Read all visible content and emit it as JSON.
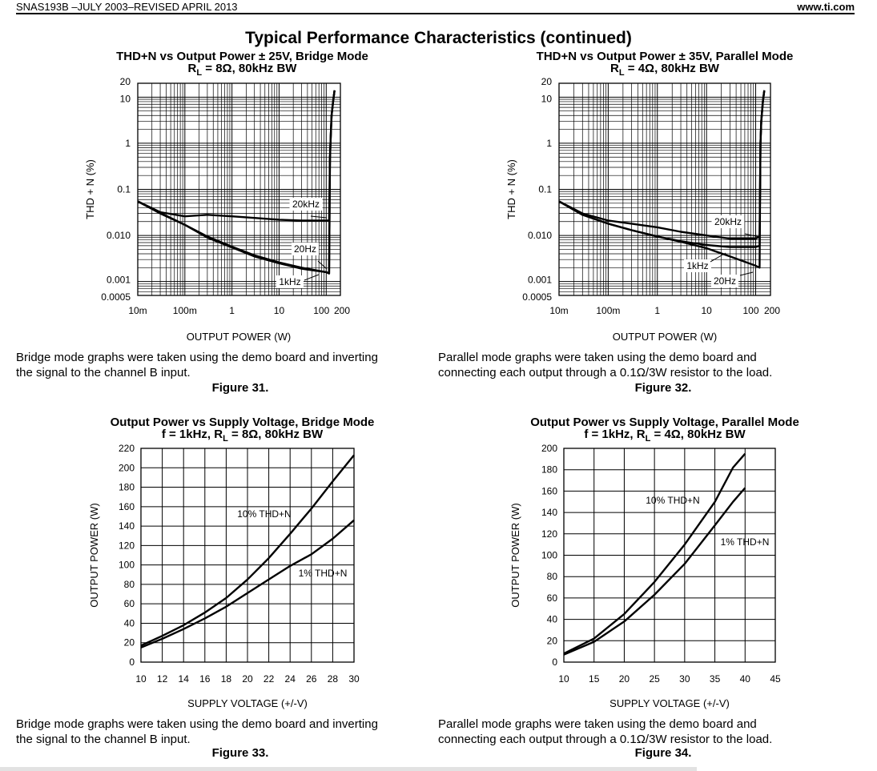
{
  "header": {
    "doc_id": "SNAS193B –JULY 2003–REVISED APRIL 2013",
    "site": "www.ti.com"
  },
  "page_title": "Typical Performance Characteristics (continued)",
  "figures": [
    {
      "title_line1": "THD+N vs Output Power ± 25V, Bridge Mode",
      "title_line2": "Rₗ = 8Ω, 80kHz BW",
      "r_sub": "L",
      "title_line2_pre": "R",
      "title_line2_post": " = 8Ω, 80kHz BW",
      "caption_line1": "Bridge mode graphs were taken using the demo board and inverting",
      "caption_line2": "the signal to the channel B input.",
      "figure_label": "Figure 31."
    },
    {
      "title_line1": "THD+N vs Output Power ± 35V, Parallel Mode",
      "r_sub": "L",
      "title_line2_pre": "R",
      "title_line2_post": " = 4Ω, 80kHz BW",
      "caption_line1": "Parallel mode graphs were taken using the demo board and",
      "caption_line2": "connecting each output through a 0.1Ω/3W resistor to the load.",
      "figure_label": "Figure 32."
    },
    {
      "title_line1": "Output Power vs Supply Voltage, Bridge Mode",
      "r_sub": "L",
      "title_line2_pre": "f = 1kHz, R",
      "title_line2_post": " = 8Ω, 80kHz BW",
      "caption_line1": "Bridge mode graphs were taken using the demo board and inverting",
      "caption_line2": "the signal to the channel B input.",
      "figure_label": "Figure 33."
    },
    {
      "title_line1": "Output Power vs Supply Voltage, Parallel Mode",
      "r_sub": "L",
      "title_line2_pre": "f = 1kHz, R",
      "title_line2_post": " = 4Ω, 80kHz BW",
      "caption_line1": "Parallel mode graphs were taken using the demo board and",
      "caption_line2": "connecting each output through a 0.1Ω/3W resistor to the load.",
      "figure_label": "Figure 34."
    }
  ],
  "chart_data": [
    {
      "type": "line",
      "xscale": "log",
      "yscale": "log",
      "xlim": [
        0.01,
        200
      ],
      "ylim": [
        0.0005,
        20
      ],
      "xlabel": "OUTPUT POWER (W)",
      "ylabel": "THD + N (%)",
      "xticks": [
        "10m",
        "100m",
        "1",
        "10",
        "100",
        "200"
      ],
      "yticks": [
        "20",
        "10",
        "1",
        "0.1",
        "0.010",
        "0.001",
        "0.0005"
      ],
      "grid": true,
      "series": [
        {
          "name": "20kHz",
          "x": [
            0.01,
            0.03,
            0.1,
            0.3,
            1,
            3,
            10,
            30,
            100,
            115,
            120,
            125,
            130,
            140,
            150
          ],
          "y": [
            0.055,
            0.032,
            0.026,
            0.028,
            0.026,
            0.024,
            0.022,
            0.021,
            0.021,
            0.021,
            0.5,
            1.5,
            4,
            8,
            14
          ]
        },
        {
          "name": "20Hz",
          "x": [
            0.01,
            0.03,
            0.1,
            0.3,
            1,
            3,
            10,
            30,
            100,
            115,
            120,
            125,
            130,
            140,
            150
          ],
          "y": [
            0.055,
            0.03,
            0.017,
            0.009,
            0.0055,
            0.0035,
            0.0025,
            0.0019,
            0.0016,
            0.0015,
            0.5,
            1.5,
            4,
            8,
            14
          ]
        },
        {
          "name": "1kHz",
          "x": [
            0.01,
            0.03,
            0.1,
            0.3,
            1,
            3,
            10,
            30,
            100,
            115,
            120,
            125,
            130,
            140,
            150
          ],
          "y": [
            0.055,
            0.031,
            0.017,
            0.0095,
            0.0057,
            0.0037,
            0.0026,
            0.002,
            0.0016,
            0.0015,
            0.5,
            1.5,
            4,
            8,
            14
          ]
        }
      ]
    },
    {
      "type": "line",
      "xscale": "log",
      "yscale": "log",
      "xlim": [
        0.01,
        200
      ],
      "ylim": [
        0.0005,
        20
      ],
      "xlabel": "OUTPUT POWER (W)",
      "ylabel": "THD + N (%)",
      "xticks": [
        "10m",
        "100m",
        "1",
        "10",
        "100",
        "200"
      ],
      "yticks": [
        "20",
        "10",
        "1",
        "0.1",
        "0.010",
        "0.001",
        "0.0005"
      ],
      "grid": true,
      "series": [
        {
          "name": "20kHz",
          "x": [
            0.01,
            0.03,
            0.1,
            0.3,
            1,
            3,
            10,
            30,
            100,
            120,
            125,
            130,
            140,
            150
          ],
          "y": [
            0.055,
            0.03,
            0.021,
            0.018,
            0.015,
            0.012,
            0.01,
            0.0085,
            0.0085,
            0.0095,
            1,
            3,
            8,
            14
          ]
        },
        {
          "name": "1kHz",
          "x": [
            0.01,
            0.03,
            0.1,
            0.3,
            1,
            3,
            10,
            30,
            100,
            120,
            125,
            130,
            140,
            150
          ],
          "y": [
            0.055,
            0.028,
            0.018,
            0.013,
            0.0095,
            0.0075,
            0.0062,
            0.0056,
            0.0056,
            0.006,
            1,
            3,
            8,
            14
          ]
        },
        {
          "name": "20Hz",
          "x": [
            0.01,
            0.03,
            0.1,
            0.3,
            1,
            3,
            10,
            30,
            100,
            120,
            125,
            130,
            140,
            150
          ],
          "y": [
            0.055,
            0.028,
            0.018,
            0.013,
            0.0095,
            0.0073,
            0.0053,
            0.0035,
            0.0022,
            0.002,
            1,
            3,
            8,
            14
          ]
        }
      ]
    },
    {
      "type": "line",
      "xlim": [
        10,
        30
      ],
      "ylim": [
        0,
        220
      ],
      "xlabel": "SUPPLY VOLTAGE (+/-V)",
      "ylabel": "OUTPUT POWER (W)",
      "xticks": [
        10,
        12,
        14,
        16,
        18,
        20,
        22,
        24,
        26,
        28,
        30
      ],
      "yticks": [
        0,
        20,
        40,
        60,
        80,
        100,
        120,
        140,
        160,
        180,
        200,
        220
      ],
      "grid": true,
      "series": [
        {
          "name": "10% THD+N",
          "x": [
            10,
            12,
            14,
            16,
            18,
            20,
            22,
            24,
            26,
            28,
            30
          ],
          "y": [
            17,
            27,
            38,
            51,
            66,
            85,
            107,
            132,
            158,
            186,
            213
          ]
        },
        {
          "name": "1% THD+N",
          "x": [
            10,
            12,
            14,
            16,
            18,
            20,
            22,
            24,
            26,
            28,
            30
          ],
          "y": [
            15,
            24,
            34,
            45,
            57,
            71,
            85,
            99,
            111,
            127,
            146
          ]
        }
      ]
    },
    {
      "type": "line",
      "xlim": [
        10,
        45
      ],
      "ylim": [
        0,
        200
      ],
      "xlabel": "SUPPLY VOLTAGE (+/-V)",
      "ylabel": "OUTPUT POWER (W)",
      "xticks": [
        10,
        15,
        20,
        25,
        30,
        35,
        40,
        45
      ],
      "yticks": [
        0,
        20,
        40,
        60,
        80,
        100,
        120,
        140,
        160,
        180,
        200
      ],
      "grid": true,
      "series": [
        {
          "name": "10% THD+N",
          "x": [
            10,
            15,
            20,
            25,
            30,
            35,
            38,
            40
          ],
          "y": [
            8,
            22,
            45,
            75,
            110,
            150,
            182,
            195
          ]
        },
        {
          "name": "1% THD+N",
          "x": [
            10,
            15,
            20,
            25,
            30,
            35,
            38,
            40
          ],
          "y": [
            7,
            19,
            38,
            63,
            92,
            128,
            150,
            163
          ]
        }
      ]
    }
  ]
}
